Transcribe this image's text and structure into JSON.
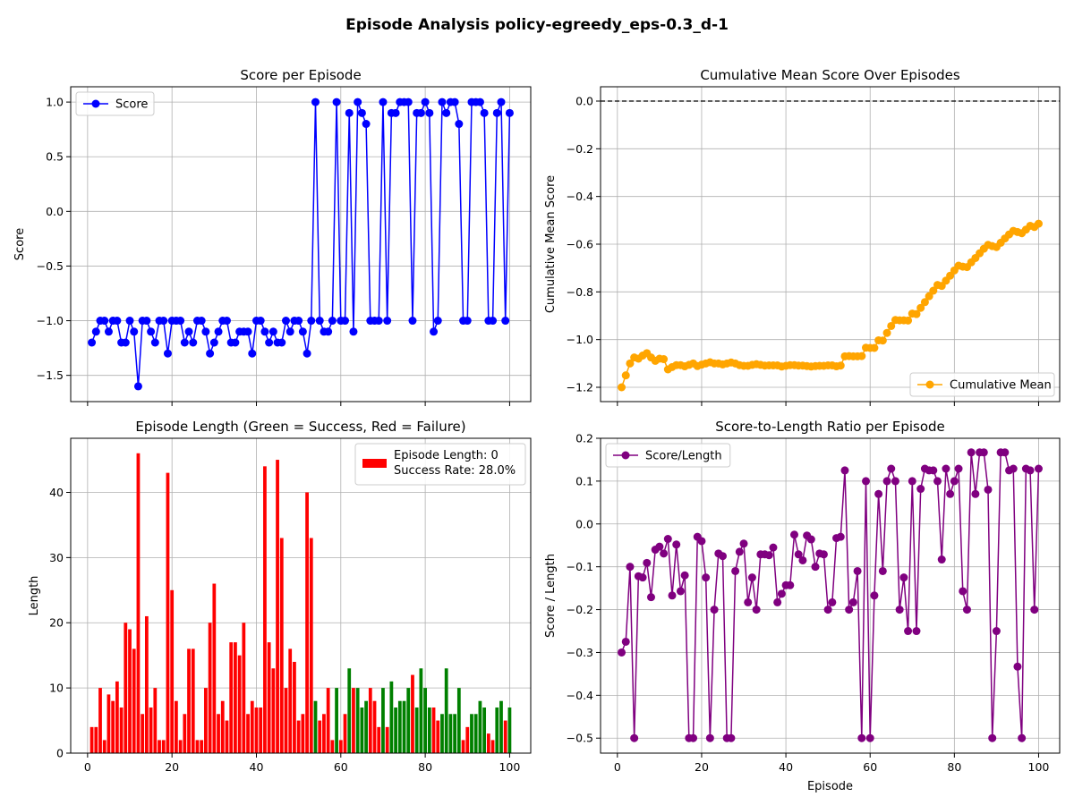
{
  "figure": {
    "title": "Episode Analysis policy-egreedy_eps-0.3_d-1"
  },
  "colors": {
    "score": "#0000ff",
    "cumulative": "#ffa500",
    "ratio": "#800080",
    "success": "#008000",
    "failure": "#ff0000",
    "grid": "#b0b0b0"
  },
  "chart_data": [
    {
      "id": "score",
      "type": "line",
      "title": "Score per Episode",
      "xlabel": "",
      "ylabel": "Score",
      "xlim": [
        -4,
        105
      ],
      "ylim": [
        -1.74,
        1.14
      ],
      "xticks": [
        0,
        20,
        40,
        60,
        80,
        100
      ],
      "yticks": [
        -1.5,
        -1.0,
        -0.5,
        0.0,
        0.5,
        1.0
      ],
      "ytick_labels": [
        "−1.5",
        "−1.0",
        "−0.5",
        "0.0",
        "0.5",
        "1.0"
      ],
      "show_xtick_labels": false,
      "grid": true,
      "legend": "upper-left",
      "series": [
        {
          "name": "Score",
          "x": [
            1,
            2,
            3,
            4,
            5,
            6,
            7,
            8,
            9,
            10,
            11,
            12,
            13,
            14,
            15,
            16,
            17,
            18,
            19,
            20,
            21,
            22,
            23,
            24,
            25,
            26,
            27,
            28,
            29,
            30,
            31,
            32,
            33,
            34,
            35,
            36,
            37,
            38,
            39,
            40,
            41,
            42,
            43,
            44,
            45,
            46,
            47,
            48,
            49,
            50,
            51,
            52,
            53,
            54,
            55,
            56,
            57,
            58,
            59,
            60,
            61,
            62,
            63,
            64,
            65,
            66,
            67,
            68,
            69,
            70,
            71,
            72,
            73,
            74,
            75,
            76,
            77,
            78,
            79,
            80,
            81,
            82,
            83,
            84,
            85,
            86,
            87,
            88,
            89,
            90,
            91,
            92,
            93,
            94,
            95,
            96,
            97,
            98,
            99,
            100
          ],
          "values": [
            -1.2,
            -1.1,
            -1.0,
            -1.0,
            -1.1,
            -1.0,
            -1.0,
            -1.2,
            -1.2,
            -1.0,
            -1.1,
            -1.6,
            -1.0,
            -1.0,
            -1.1,
            -1.2,
            -1.0,
            -1.0,
            -1.3,
            -1.0,
            -1.0,
            -1.0,
            -1.2,
            -1.1,
            -1.2,
            -1.0,
            -1.0,
            -1.1,
            -1.3,
            -1.2,
            -1.1,
            -1.0,
            -1.0,
            -1.2,
            -1.2,
            -1.1,
            -1.1,
            -1.1,
            -1.3,
            -1.0,
            -1.0,
            -1.1,
            -1.2,
            -1.1,
            -1.2,
            -1.2,
            -1.0,
            -1.1,
            -1.0,
            -1.0,
            -1.1,
            -1.3,
            -1.0,
            1.0,
            -1.0,
            -1.1,
            -1.1,
            -1.0,
            1.0,
            -1.0,
            -1.0,
            0.9,
            -1.1,
            1.0,
            0.9,
            0.8,
            -1.0,
            -1.0,
            -1.0,
            1.0,
            -1.0,
            0.9,
            0.9,
            1.0,
            1.0,
            1.0,
            -1.0,
            0.9,
            0.9,
            1.0,
            0.9,
            -1.1,
            -1.0,
            1.0,
            0.9,
            1.0,
            1.0,
            0.8,
            -1.0,
            -1.0,
            1.0,
            1.0,
            1.0,
            0.9,
            -1.0,
            -1.0,
            0.9,
            1.0,
            -1.0,
            0.9
          ]
        }
      ]
    },
    {
      "id": "cumulative",
      "type": "line",
      "title": "Cumulative Mean Score Over Episodes",
      "xlabel": "",
      "ylabel": "Cumulative Mean Score",
      "xlim": [
        -4,
        105
      ],
      "ylim": [
        -1.26,
        0.06
      ],
      "xticks": [
        0,
        20,
        40,
        60,
        80,
        100
      ],
      "yticks": [
        -1.2,
        -1.0,
        -0.8,
        -0.6,
        -0.4,
        -0.2,
        0.0
      ],
      "ytick_labels": [
        "−1.2",
        "−1.0",
        "−0.8",
        "−0.6",
        "−0.4",
        "−0.2",
        "0.0"
      ],
      "show_xtick_labels": false,
      "grid": true,
      "reference_line": {
        "y": 0,
        "style": "dashed",
        "color": "#000000"
      },
      "legend": "lower-right",
      "series": [
        {
          "name": "Cumulative Mean",
          "x": [
            1,
            2,
            3,
            4,
            5,
            6,
            7,
            8,
            9,
            10,
            11,
            12,
            13,
            14,
            15,
            16,
            17,
            18,
            19,
            20,
            21,
            22,
            23,
            24,
            25,
            26,
            27,
            28,
            29,
            30,
            31,
            32,
            33,
            34,
            35,
            36,
            37,
            38,
            39,
            40,
            41,
            42,
            43,
            44,
            45,
            46,
            47,
            48,
            49,
            50,
            51,
            52,
            53,
            54,
            55,
            56,
            57,
            58,
            59,
            60,
            61,
            62,
            63,
            64,
            65,
            66,
            67,
            68,
            69,
            70,
            71,
            72,
            73,
            74,
            75,
            76,
            77,
            78,
            79,
            80,
            81,
            82,
            83,
            84,
            85,
            86,
            87,
            88,
            89,
            90,
            91,
            92,
            93,
            94,
            95,
            96,
            97,
            98,
            99,
            100
          ],
          "values": [
            -1.2,
            -1.15,
            -1.1,
            -1.075,
            -1.08,
            -1.067,
            -1.057,
            -1.075,
            -1.089,
            -1.08,
            -1.082,
            -1.125,
            -1.115,
            -1.107,
            -1.107,
            -1.112,
            -1.106,
            -1.1,
            -1.111,
            -1.105,
            -1.1,
            -1.095,
            -1.1,
            -1.1,
            -1.104,
            -1.1,
            -1.096,
            -1.1,
            -1.107,
            -1.11,
            -1.11,
            -1.106,
            -1.103,
            -1.106,
            -1.109,
            -1.108,
            -1.108,
            -1.108,
            -1.113,
            -1.11,
            -1.107,
            -1.107,
            -1.109,
            -1.109,
            -1.111,
            -1.113,
            -1.111,
            -1.11,
            -1.11,
            -1.108,
            -1.108,
            -1.112,
            -1.109,
            -1.07,
            -1.069,
            -1.07,
            -1.07,
            -1.069,
            -1.034,
            -1.035,
            -1.035,
            -1.003,
            -1.004,
            -0.972,
            -0.943,
            -0.918,
            -0.919,
            -0.919,
            -0.92,
            -0.891,
            -0.893,
            -0.867,
            -0.843,
            -0.818,
            -0.795,
            -0.771,
            -0.775,
            -0.753,
            -0.732,
            -0.71,
            -0.69,
            -0.694,
            -0.696,
            -0.676,
            -0.658,
            -0.638,
            -0.619,
            -0.603,
            -0.608,
            -0.612,
            -0.594,
            -0.576,
            -0.559,
            -0.544,
            -0.549,
            -0.554,
            -0.539,
            -0.523,
            -0.528,
            -0.514
          ]
        }
      ]
    },
    {
      "id": "length",
      "type": "bar",
      "title": "Episode Length (Green = Success, Red = Failure)",
      "xlabel": "",
      "ylabel": "Length",
      "xlim": [
        -4,
        105
      ],
      "ylim": [
        0,
        48.3
      ],
      "xticks": [
        0,
        20,
        40,
        60,
        80,
        100
      ],
      "yticks": [
        0,
        10,
        20,
        30,
        40
      ],
      "ytick_labels": [
        "0",
        "10",
        "20",
        "30",
        "40"
      ],
      "show_xtick_labels": true,
      "grid": true,
      "legend": "upper-right",
      "legend_lines": [
        "Episode Length: 0",
        "Success Rate: 28.0%"
      ],
      "x": [
        1,
        2,
        3,
        4,
        5,
        6,
        7,
        8,
        9,
        10,
        11,
        12,
        13,
        14,
        15,
        16,
        17,
        18,
        19,
        20,
        21,
        22,
        23,
        24,
        25,
        26,
        27,
        28,
        29,
        30,
        31,
        32,
        33,
        34,
        35,
        36,
        37,
        38,
        39,
        40,
        41,
        42,
        43,
        44,
        45,
        46,
        47,
        48,
        49,
        50,
        51,
        52,
        53,
        54,
        55,
        56,
        57,
        58,
        59,
        60,
        61,
        62,
        63,
        64,
        65,
        66,
        67,
        68,
        69,
        70,
        71,
        72,
        73,
        74,
        75,
        76,
        77,
        78,
        79,
        80,
        81,
        82,
        83,
        84,
        85,
        86,
        87,
        88,
        89,
        90,
        91,
        92,
        93,
        94,
        95,
        96,
        97,
        98,
        99,
        100
      ],
      "values": [
        4,
        4,
        10,
        2,
        9,
        8,
        11,
        7,
        20,
        19,
        16,
        46,
        6,
        21,
        7,
        10,
        2,
        2,
        43,
        25,
        8,
        2,
        6,
        16,
        16,
        2,
        2,
        10,
        20,
        26,
        6,
        8,
        5,
        17,
        17,
        15,
        20,
        6,
        8,
        7,
        7,
        44,
        17,
        13,
        45,
        33,
        10,
        16,
        14,
        5,
        6,
        40,
        33,
        8,
        5,
        6,
        10,
        2,
        10,
        2,
        6,
        13,
        10,
        10,
        7,
        8,
        10,
        8,
        4,
        10,
        4,
        11,
        7,
        8,
        8,
        10,
        12,
        7,
        13,
        10,
        7,
        7,
        5,
        6,
        13,
        6,
        6,
        10,
        2,
        4,
        6,
        6,
        8,
        7,
        3,
        2,
        7,
        8,
        5,
        7
      ],
      "success": [
        false,
        false,
        false,
        false,
        false,
        false,
        false,
        false,
        false,
        false,
        false,
        false,
        false,
        false,
        false,
        false,
        false,
        false,
        false,
        false,
        false,
        false,
        false,
        false,
        false,
        false,
        false,
        false,
        false,
        false,
        false,
        false,
        false,
        false,
        false,
        false,
        false,
        false,
        false,
        false,
        false,
        false,
        false,
        false,
        false,
        false,
        false,
        false,
        false,
        false,
        false,
        false,
        false,
        true,
        false,
        false,
        false,
        false,
        true,
        false,
        false,
        true,
        false,
        true,
        true,
        true,
        false,
        false,
        false,
        true,
        false,
        true,
        true,
        true,
        true,
        true,
        false,
        true,
        true,
        true,
        true,
        false,
        false,
        true,
        true,
        true,
        true,
        true,
        false,
        false,
        true,
        true,
        true,
        true,
        false,
        false,
        true,
        true,
        false,
        true
      ]
    },
    {
      "id": "ratio",
      "type": "line",
      "title": "Score-to-Length Ratio per Episode",
      "xlabel": "Episode",
      "ylabel": "Score / Length",
      "xlim": [
        -4,
        105
      ],
      "ylim": [
        -0.535,
        0.2
      ],
      "xticks": [
        0,
        20,
        40,
        60,
        80,
        100
      ],
      "yticks": [
        -0.5,
        -0.4,
        -0.3,
        -0.2,
        -0.1,
        0.0,
        0.1,
        0.2
      ],
      "ytick_labels": [
        "−0.5",
        "−0.4",
        "−0.3",
        "−0.2",
        "−0.1",
        "0.0",
        "0.1",
        "0.2"
      ],
      "show_xtick_labels": true,
      "grid": true,
      "legend": "upper-left",
      "series": [
        {
          "name": "Score/Length",
          "x": [
            1,
            2,
            3,
            4,
            5,
            6,
            7,
            8,
            9,
            10,
            11,
            12,
            13,
            14,
            15,
            16,
            17,
            18,
            19,
            20,
            21,
            22,
            23,
            24,
            25,
            26,
            27,
            28,
            29,
            30,
            31,
            32,
            33,
            34,
            35,
            36,
            37,
            38,
            39,
            40,
            41,
            42,
            43,
            44,
            45,
            46,
            47,
            48,
            49,
            50,
            51,
            52,
            53,
            54,
            55,
            56,
            57,
            58,
            59,
            60,
            61,
            62,
            63,
            64,
            65,
            66,
            67,
            68,
            69,
            70,
            71,
            72,
            73,
            74,
            75,
            76,
            77,
            78,
            79,
            80,
            81,
            82,
            83,
            84,
            85,
            86,
            87,
            88,
            89,
            90,
            91,
            92,
            93,
            94,
            95,
            96,
            97,
            98,
            99,
            100
          ],
          "values": [
            -0.3,
            -0.275,
            -0.1,
            -0.5,
            -0.122,
            -0.125,
            -0.091,
            -0.171,
            -0.06,
            -0.053,
            -0.069,
            -0.035,
            -0.167,
            -0.048,
            -0.157,
            -0.12,
            -0.5,
            -0.5,
            -0.03,
            -0.04,
            -0.125,
            -0.5,
            -0.2,
            -0.069,
            -0.075,
            -0.5,
            -0.5,
            -0.11,
            -0.065,
            -0.046,
            -0.183,
            -0.125,
            -0.2,
            -0.071,
            -0.071,
            -0.073,
            -0.055,
            -0.183,
            -0.163,
            -0.143,
            -0.143,
            -0.025,
            -0.071,
            -0.085,
            -0.027,
            -0.036,
            -0.1,
            -0.069,
            -0.071,
            -0.2,
            -0.183,
            -0.033,
            -0.03,
            0.125,
            -0.2,
            -0.183,
            -0.11,
            -0.5,
            0.1,
            -0.5,
            -0.167,
            0.07,
            -0.11,
            0.1,
            0.129,
            0.1,
            -0.2,
            -0.125,
            -0.25,
            0.1,
            -0.25,
            0.082,
            0.129,
            0.125,
            0.125,
            0.1,
            -0.083,
            0.129,
            0.07,
            0.1,
            0.129,
            -0.157,
            -0.2,
            0.167,
            0.07,
            0.167,
            0.167,
            0.08,
            -0.5,
            -0.25,
            0.167,
            0.167,
            0.125,
            0.129,
            -0.333,
            -0.5,
            0.129,
            0.125,
            -0.2,
            0.129
          ]
        }
      ]
    }
  ]
}
